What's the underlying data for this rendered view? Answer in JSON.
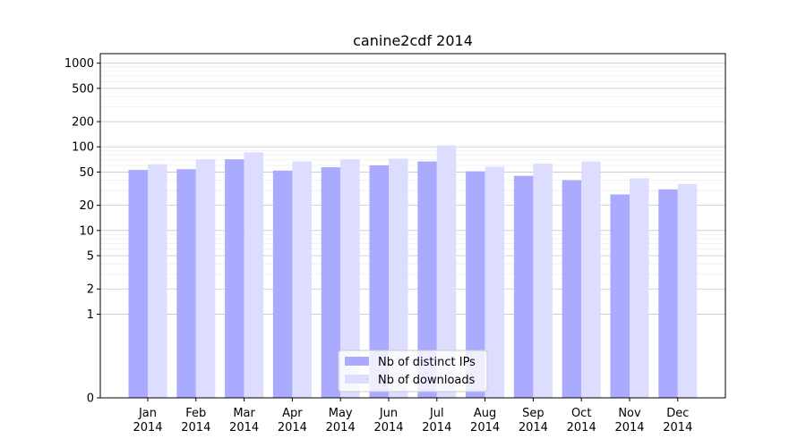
{
  "chart_data": {
    "type": "bar",
    "title": "canine2cdf 2014",
    "xlabel": "",
    "ylabel": "",
    "yscale": "symlog",
    "ylim": [
      0,
      1300
    ],
    "yticks": [
      0,
      1,
      2,
      5,
      10,
      20,
      50,
      100,
      200,
      500,
      1000
    ],
    "grid": true,
    "legend_position": "bottom-center",
    "categories": [
      [
        "Jan",
        "2014"
      ],
      [
        "Feb",
        "2014"
      ],
      [
        "Mar",
        "2014"
      ],
      [
        "Apr",
        "2014"
      ],
      [
        "May",
        "2014"
      ],
      [
        "Jun",
        "2014"
      ],
      [
        "Jul",
        "2014"
      ],
      [
        "Aug",
        "2014"
      ],
      [
        "Sep",
        "2014"
      ],
      [
        "Oct",
        "2014"
      ],
      [
        "Nov",
        "2014"
      ],
      [
        "Dec",
        "2014"
      ]
    ],
    "series": [
      {
        "name": "Nb of distinct IPs",
        "color": "#aaaaff",
        "values": [
          53,
          54,
          71,
          52,
          57,
          60,
          67,
          51,
          45,
          40,
          27,
          31
        ]
      },
      {
        "name": "Nb of downloads",
        "color": "#ddddff",
        "values": [
          62,
          71,
          86,
          67,
          71,
          72,
          104,
          58,
          63,
          67,
          42,
          36
        ]
      }
    ]
  }
}
